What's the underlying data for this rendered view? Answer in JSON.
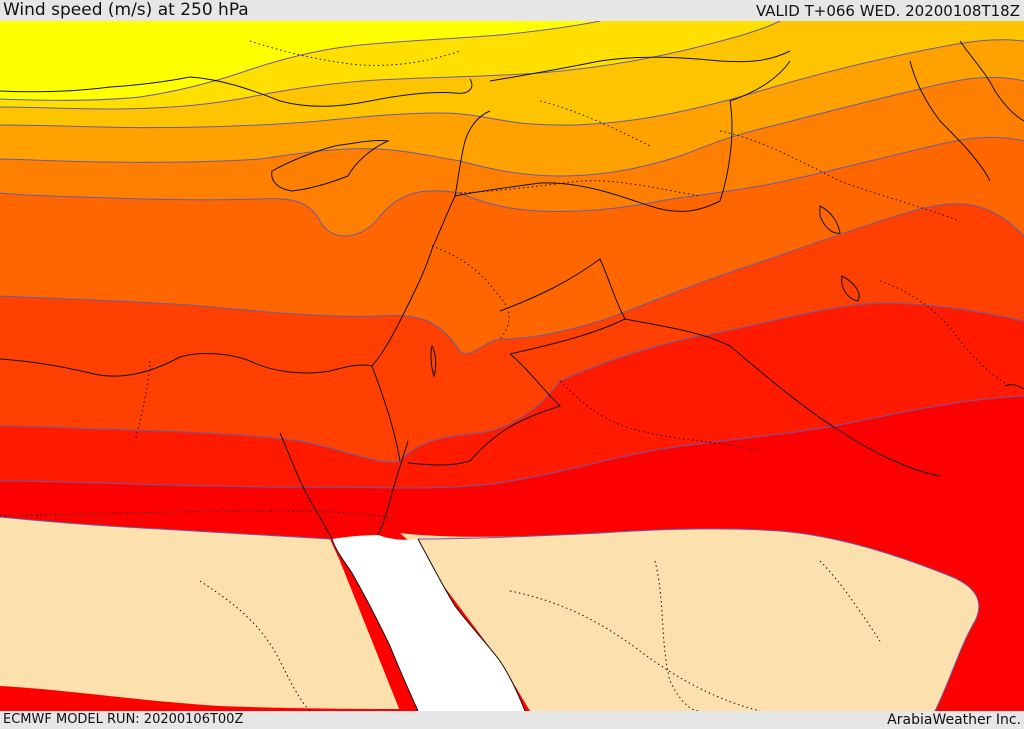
{
  "header": {
    "title": "Wind speed (m/s) at 250 hPa",
    "valid": "VALID T+066 WED. 20200108T18Z"
  },
  "footer": {
    "model_run": "ECMWF MODEL RUN: 20200106T00Z",
    "credit": "ArabiaWeather Inc."
  },
  "map": {
    "variable": "Wind speed",
    "units": "m/s",
    "level": "250 hPa",
    "colors": {
      "low_wind": "#fce0ad",
      "band_1": "#ff0000",
      "band_2": "#ff1a00",
      "band_3": "#ff4000",
      "band_4": "#ff6600",
      "band_5": "#ff8000",
      "band_6": "#ffa200",
      "band_7": "#ffc400",
      "band_8": "#ffdf00",
      "band_9": "#ffff00",
      "sea_mask": "#ffffff",
      "contour": "#6a5aa8",
      "border": "#111111"
    }
  }
}
